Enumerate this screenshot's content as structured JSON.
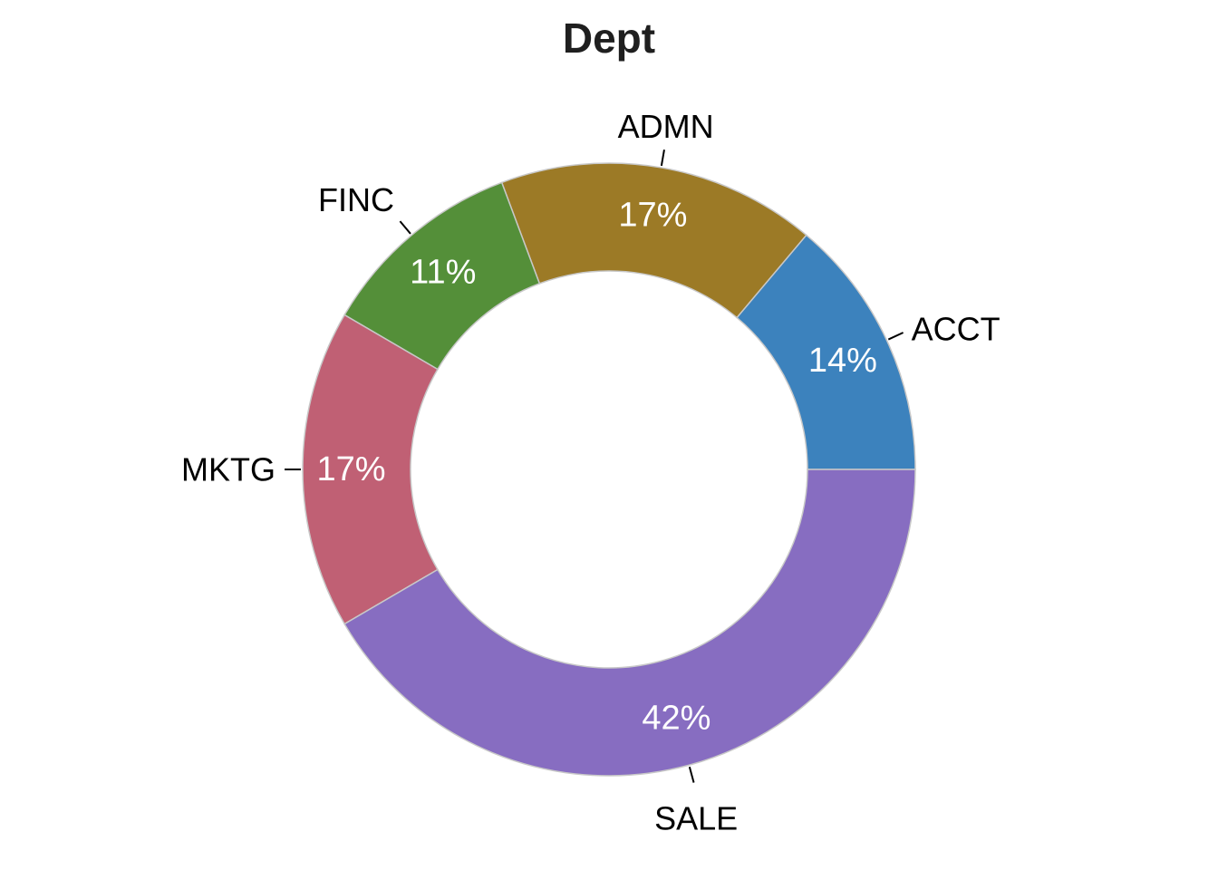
{
  "chart_data": {
    "type": "pie",
    "title": "Dept",
    "donut": true,
    "start": "3 o'clock",
    "direction": "counterclockwise",
    "categories": [
      "ACCT",
      "ADMN",
      "FINC",
      "MKTG",
      "SALE"
    ],
    "values": [
      14,
      17,
      11,
      17,
      42
    ],
    "value_labels": [
      "14%",
      "17%",
      "11%",
      "17%",
      "42%"
    ],
    "colors": [
      "#3c82bd",
      "#9c7a26",
      "#548f39",
      "#c06074",
      "#876dc1"
    ]
  }
}
